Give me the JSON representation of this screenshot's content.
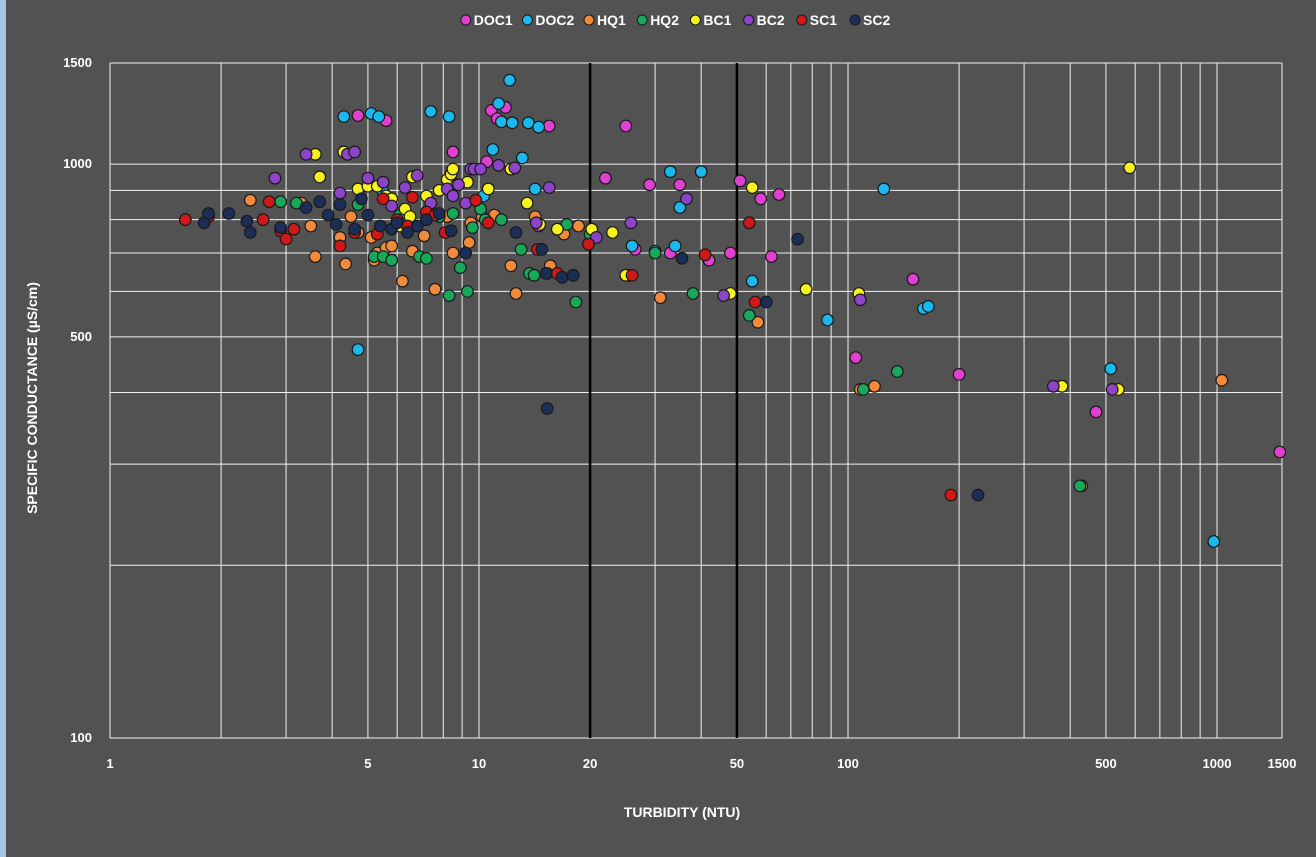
{
  "chart_data": {
    "type": "scatter",
    "xlabel": "TURBIDITY (NTU)",
    "ylabel": "SPECIFIC CONDUCTANCE (µS/cm)",
    "x_scale": "log",
    "y_scale": "log",
    "xlim": [
      1,
      1500
    ],
    "ylim": [
      100,
      1500
    ],
    "x_ticks": [
      1,
      5,
      10,
      20,
      50,
      100,
      500,
      1000,
      1500
    ],
    "y_ticks": [
      100,
      500,
      1000,
      1500
    ],
    "reference_lines_x": [
      20,
      50
    ],
    "grid": true,
    "legend_position": "top",
    "series": [
      {
        "name": "DOC1",
        "color": "#e040d0",
        "points": [
          [
            4.7,
            1215
          ],
          [
            5.6,
            1190
          ],
          [
            8.5,
            1050
          ],
          [
            10.5,
            1010
          ],
          [
            10.8,
            1240
          ],
          [
            11.2,
            1200
          ],
          [
            11.8,
            1255
          ],
          [
            12.2,
            980
          ],
          [
            14.5,
            780
          ],
          [
            15.5,
            1165
          ],
          [
            22,
            945
          ],
          [
            25,
            1165
          ],
          [
            26.5,
            710
          ],
          [
            29,
            920
          ],
          [
            33,
            700
          ],
          [
            35,
            920
          ],
          [
            42,
            680
          ],
          [
            48,
            700
          ],
          [
            51,
            935
          ],
          [
            58,
            870
          ],
          [
            62,
            690
          ],
          [
            65,
            885
          ],
          [
            150,
            630
          ],
          [
            105,
            460
          ],
          [
            200,
            430
          ],
          [
            470,
            370
          ],
          [
            1480,
            315
          ]
        ]
      },
      {
        "name": "DOC2",
        "color": "#1ab8ec",
        "points": [
          [
            4.3,
            1210
          ],
          [
            5.1,
            1225
          ],
          [
            5.35,
            1210
          ],
          [
            5.5,
            895
          ],
          [
            7.4,
            1235
          ],
          [
            8.3,
            1210
          ],
          [
            10.3,
            880
          ],
          [
            10.9,
            1060
          ],
          [
            11.3,
            1275
          ],
          [
            11.5,
            1185
          ],
          [
            12.1,
            1400
          ],
          [
            12.3,
            1180
          ],
          [
            13.1,
            1025
          ],
          [
            13.6,
            1180
          ],
          [
            14.2,
            905
          ],
          [
            14.5,
            1160
          ],
          [
            26,
            720
          ],
          [
            30,
            705
          ],
          [
            33,
            970
          ],
          [
            34,
            720
          ],
          [
            35,
            840
          ],
          [
            40,
            970
          ],
          [
            55,
            625
          ],
          [
            88,
            535
          ],
          [
            125,
            905
          ],
          [
            160,
            560
          ],
          [
            165,
            565
          ],
          [
            515,
            440
          ],
          [
            980,
            220
          ],
          [
            4.7,
            475
          ]
        ]
      },
      {
        "name": "HQ1",
        "color": "#f28a3c",
        "points": [
          [
            2.4,
            865
          ],
          [
            3.3,
            855
          ],
          [
            3.5,
            780
          ],
          [
            3.6,
            690
          ],
          [
            4.2,
            745
          ],
          [
            4.35,
            670
          ],
          [
            4.5,
            810
          ],
          [
            4.7,
            760
          ],
          [
            5.1,
            745
          ],
          [
            5.2,
            680
          ],
          [
            5.3,
            700
          ],
          [
            5.6,
            715
          ],
          [
            5.8,
            720
          ],
          [
            6.2,
            625
          ],
          [
            6.6,
            705
          ],
          [
            7.1,
            750
          ],
          [
            7.6,
            605
          ],
          [
            8.2,
            810
          ],
          [
            8.5,
            700
          ],
          [
            9.4,
            730
          ],
          [
            9.5,
            790
          ],
          [
            10.2,
            810
          ],
          [
            11,
            815
          ],
          [
            12.2,
            665
          ],
          [
            12.6,
            595
          ],
          [
            14.2,
            810
          ],
          [
            15.6,
            665
          ],
          [
            17,
            755
          ],
          [
            18.6,
            780
          ],
          [
            31,
            585
          ],
          [
            57,
            530
          ],
          [
            108,
            405
          ],
          [
            118,
            410
          ],
          [
            430,
            275
          ],
          [
            1030,
            420
          ]
        ]
      },
      {
        "name": "HQ2",
        "color": "#18a85a",
        "points": [
          [
            2.9,
            860
          ],
          [
            3.2,
            855
          ],
          [
            4.7,
            850
          ],
          [
            5.2,
            690
          ],
          [
            5.5,
            690
          ],
          [
            5.8,
            680
          ],
          [
            6.1,
            815
          ],
          [
            6.4,
            780
          ],
          [
            6.9,
            690
          ],
          [
            7.2,
            685
          ],
          [
            7.8,
            810
          ],
          [
            8.3,
            590
          ],
          [
            8.5,
            820
          ],
          [
            8.9,
            660
          ],
          [
            9.3,
            600
          ],
          [
            9.6,
            775
          ],
          [
            10.1,
            835
          ],
          [
            10.4,
            800
          ],
          [
            11.5,
            800
          ],
          [
            13,
            710
          ],
          [
            13.7,
            645
          ],
          [
            14.1,
            640
          ],
          [
            15.3,
            645
          ],
          [
            17.3,
            785
          ],
          [
            18.3,
            575
          ],
          [
            20,
            755
          ],
          [
            25.5,
            640
          ],
          [
            30,
            700
          ],
          [
            38,
            595
          ],
          [
            54,
            545
          ],
          [
            110,
            405
          ],
          [
            136,
            435
          ],
          [
            425,
            275
          ]
        ]
      },
      {
        "name": "BC1",
        "color": "#f7f21e",
        "points": [
          [
            3.6,
            1040
          ],
          [
            3.7,
            950
          ],
          [
            4.3,
            1050
          ],
          [
            4.7,
            905
          ],
          [
            5.0,
            915
          ],
          [
            5.3,
            915
          ],
          [
            5.6,
            880
          ],
          [
            5.8,
            870
          ],
          [
            6.1,
            780
          ],
          [
            6.3,
            835
          ],
          [
            6.5,
            810
          ],
          [
            6.6,
            950
          ],
          [
            7.2,
            880
          ],
          [
            7.8,
            900
          ],
          [
            8.2,
            940
          ],
          [
            8.4,
            960
          ],
          [
            8.5,
            980
          ],
          [
            8.7,
            920
          ],
          [
            9.3,
            930
          ],
          [
            10.6,
            905
          ],
          [
            12.2,
            980
          ],
          [
            13.5,
            855
          ],
          [
            14.6,
            785
          ],
          [
            16.3,
            770
          ],
          [
            20.2,
            770
          ],
          [
            23,
            760
          ],
          [
            25,
            640
          ],
          [
            48,
            595
          ],
          [
            55,
            910
          ],
          [
            77,
            605
          ],
          [
            107,
            595
          ],
          [
            380,
            410
          ],
          [
            540,
            405
          ],
          [
            580,
            985
          ]
        ]
      },
      {
        "name": "BC2",
        "color": "#8e44c8",
        "points": [
          [
            2.8,
            945
          ],
          [
            3.4,
            1040
          ],
          [
            4.2,
            890
          ],
          [
            4.4,
            1040
          ],
          [
            4.6,
            1050
          ],
          [
            5.0,
            945
          ],
          [
            5.5,
            930
          ],
          [
            5.8,
            845
          ],
          [
            6.3,
            910
          ],
          [
            6.8,
            955
          ],
          [
            7.4,
            855
          ],
          [
            8.2,
            905
          ],
          [
            8.5,
            880
          ],
          [
            8.8,
            920
          ],
          [
            9.2,
            855
          ],
          [
            9.5,
            980
          ],
          [
            9.7,
            980
          ],
          [
            10.1,
            980
          ],
          [
            11.3,
            995
          ],
          [
            12.5,
            985
          ],
          [
            14.3,
            790
          ],
          [
            15.5,
            910
          ],
          [
            20.8,
            745
          ],
          [
            25.8,
            790
          ],
          [
            36.5,
            870
          ],
          [
            46,
            590
          ],
          [
            108,
            580
          ],
          [
            360,
            410
          ],
          [
            520,
            405
          ]
        ]
      },
      {
        "name": "SC1",
        "color": "#d01818",
        "points": [
          [
            1.6,
            800
          ],
          [
            1.85,
            810
          ],
          [
            2.6,
            800
          ],
          [
            2.7,
            860
          ],
          [
            2.9,
            765
          ],
          [
            3.0,
            740
          ],
          [
            3.15,
            770
          ],
          [
            4.2,
            720
          ],
          [
            4.6,
            760
          ],
          [
            5.3,
            755
          ],
          [
            5.5,
            870
          ],
          [
            6.0,
            800
          ],
          [
            6.4,
            780
          ],
          [
            6.6,
            875
          ],
          [
            7.2,
            825
          ],
          [
            7.6,
            815
          ],
          [
            8.1,
            760
          ],
          [
            9.8,
            865
          ],
          [
            10.6,
            790
          ],
          [
            14.4,
            710
          ],
          [
            16.3,
            645
          ],
          [
            19.8,
            725
          ],
          [
            26,
            640
          ],
          [
            41,
            695
          ],
          [
            54,
            790
          ],
          [
            56,
            575
          ],
          [
            190,
            265
          ]
        ]
      },
      {
        "name": "SC2",
        "color": "#1c2e58",
        "points": [
          [
            1.8,
            790
          ],
          [
            1.85,
            820
          ],
          [
            2.1,
            820
          ],
          [
            2.35,
            795
          ],
          [
            2.4,
            760
          ],
          [
            2.9,
            775
          ],
          [
            3.4,
            840
          ],
          [
            3.7,
            860
          ],
          [
            3.9,
            815
          ],
          [
            4.1,
            785
          ],
          [
            4.2,
            850
          ],
          [
            4.6,
            770
          ],
          [
            4.8,
            870
          ],
          [
            5.0,
            815
          ],
          [
            5.4,
            780
          ],
          [
            5.8,
            770
          ],
          [
            6.0,
            790
          ],
          [
            6.4,
            760
          ],
          [
            6.8,
            780
          ],
          [
            7.2,
            800
          ],
          [
            7.8,
            820
          ],
          [
            8.4,
            765
          ],
          [
            9.2,
            700
          ],
          [
            12.6,
            760
          ],
          [
            14.8,
            710
          ],
          [
            15.2,
            645
          ],
          [
            16.8,
            635
          ],
          [
            18,
            640
          ],
          [
            35.5,
            685
          ],
          [
            60,
            575
          ],
          [
            73,
            740
          ],
          [
            225,
            265
          ],
          [
            15.3,
            375
          ]
        ]
      }
    ]
  }
}
